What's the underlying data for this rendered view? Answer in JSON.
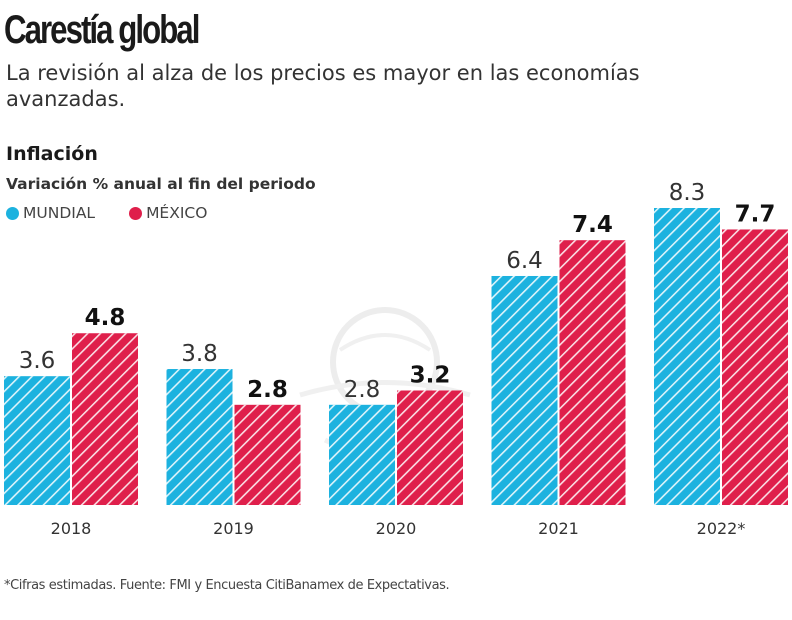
{
  "header": {
    "title": "Carestía global",
    "subtitle": "La revisión al alza de los precios es mayor en las economías avanzadas."
  },
  "chart_data": {
    "type": "bar",
    "title": "Inflación",
    "subtitle": "Variación % anual al fin del periodo",
    "xlabel": "",
    "ylabel": "",
    "ylim": [
      0,
      8.3
    ],
    "grid": false,
    "legend_position": "top-left",
    "categories": [
      "2018",
      "2019",
      "2020",
      "2021",
      "2022*"
    ],
    "series": [
      {
        "name": "MUNDIAL",
        "color": "#1cb2df",
        "values": [
          3.6,
          3.8,
          2.8,
          6.4,
          8.3
        ],
        "labels": [
          "3.6",
          "3.8",
          "2.8",
          "6.4",
          "8.3"
        ],
        "bold_labels": false
      },
      {
        "name": "MÉXICO",
        "color": "#df1f4b",
        "values": [
          4.8,
          2.8,
          3.2,
          7.4,
          7.7
        ],
        "labels": [
          "4.8",
          "2.8",
          "3.2",
          "7.4",
          "7.7"
        ],
        "bold_labels": true
      }
    ]
  },
  "footnote": "*Cifras estimadas. Fuente: FMI y Encuesta CitiBanamex de Expectativas."
}
